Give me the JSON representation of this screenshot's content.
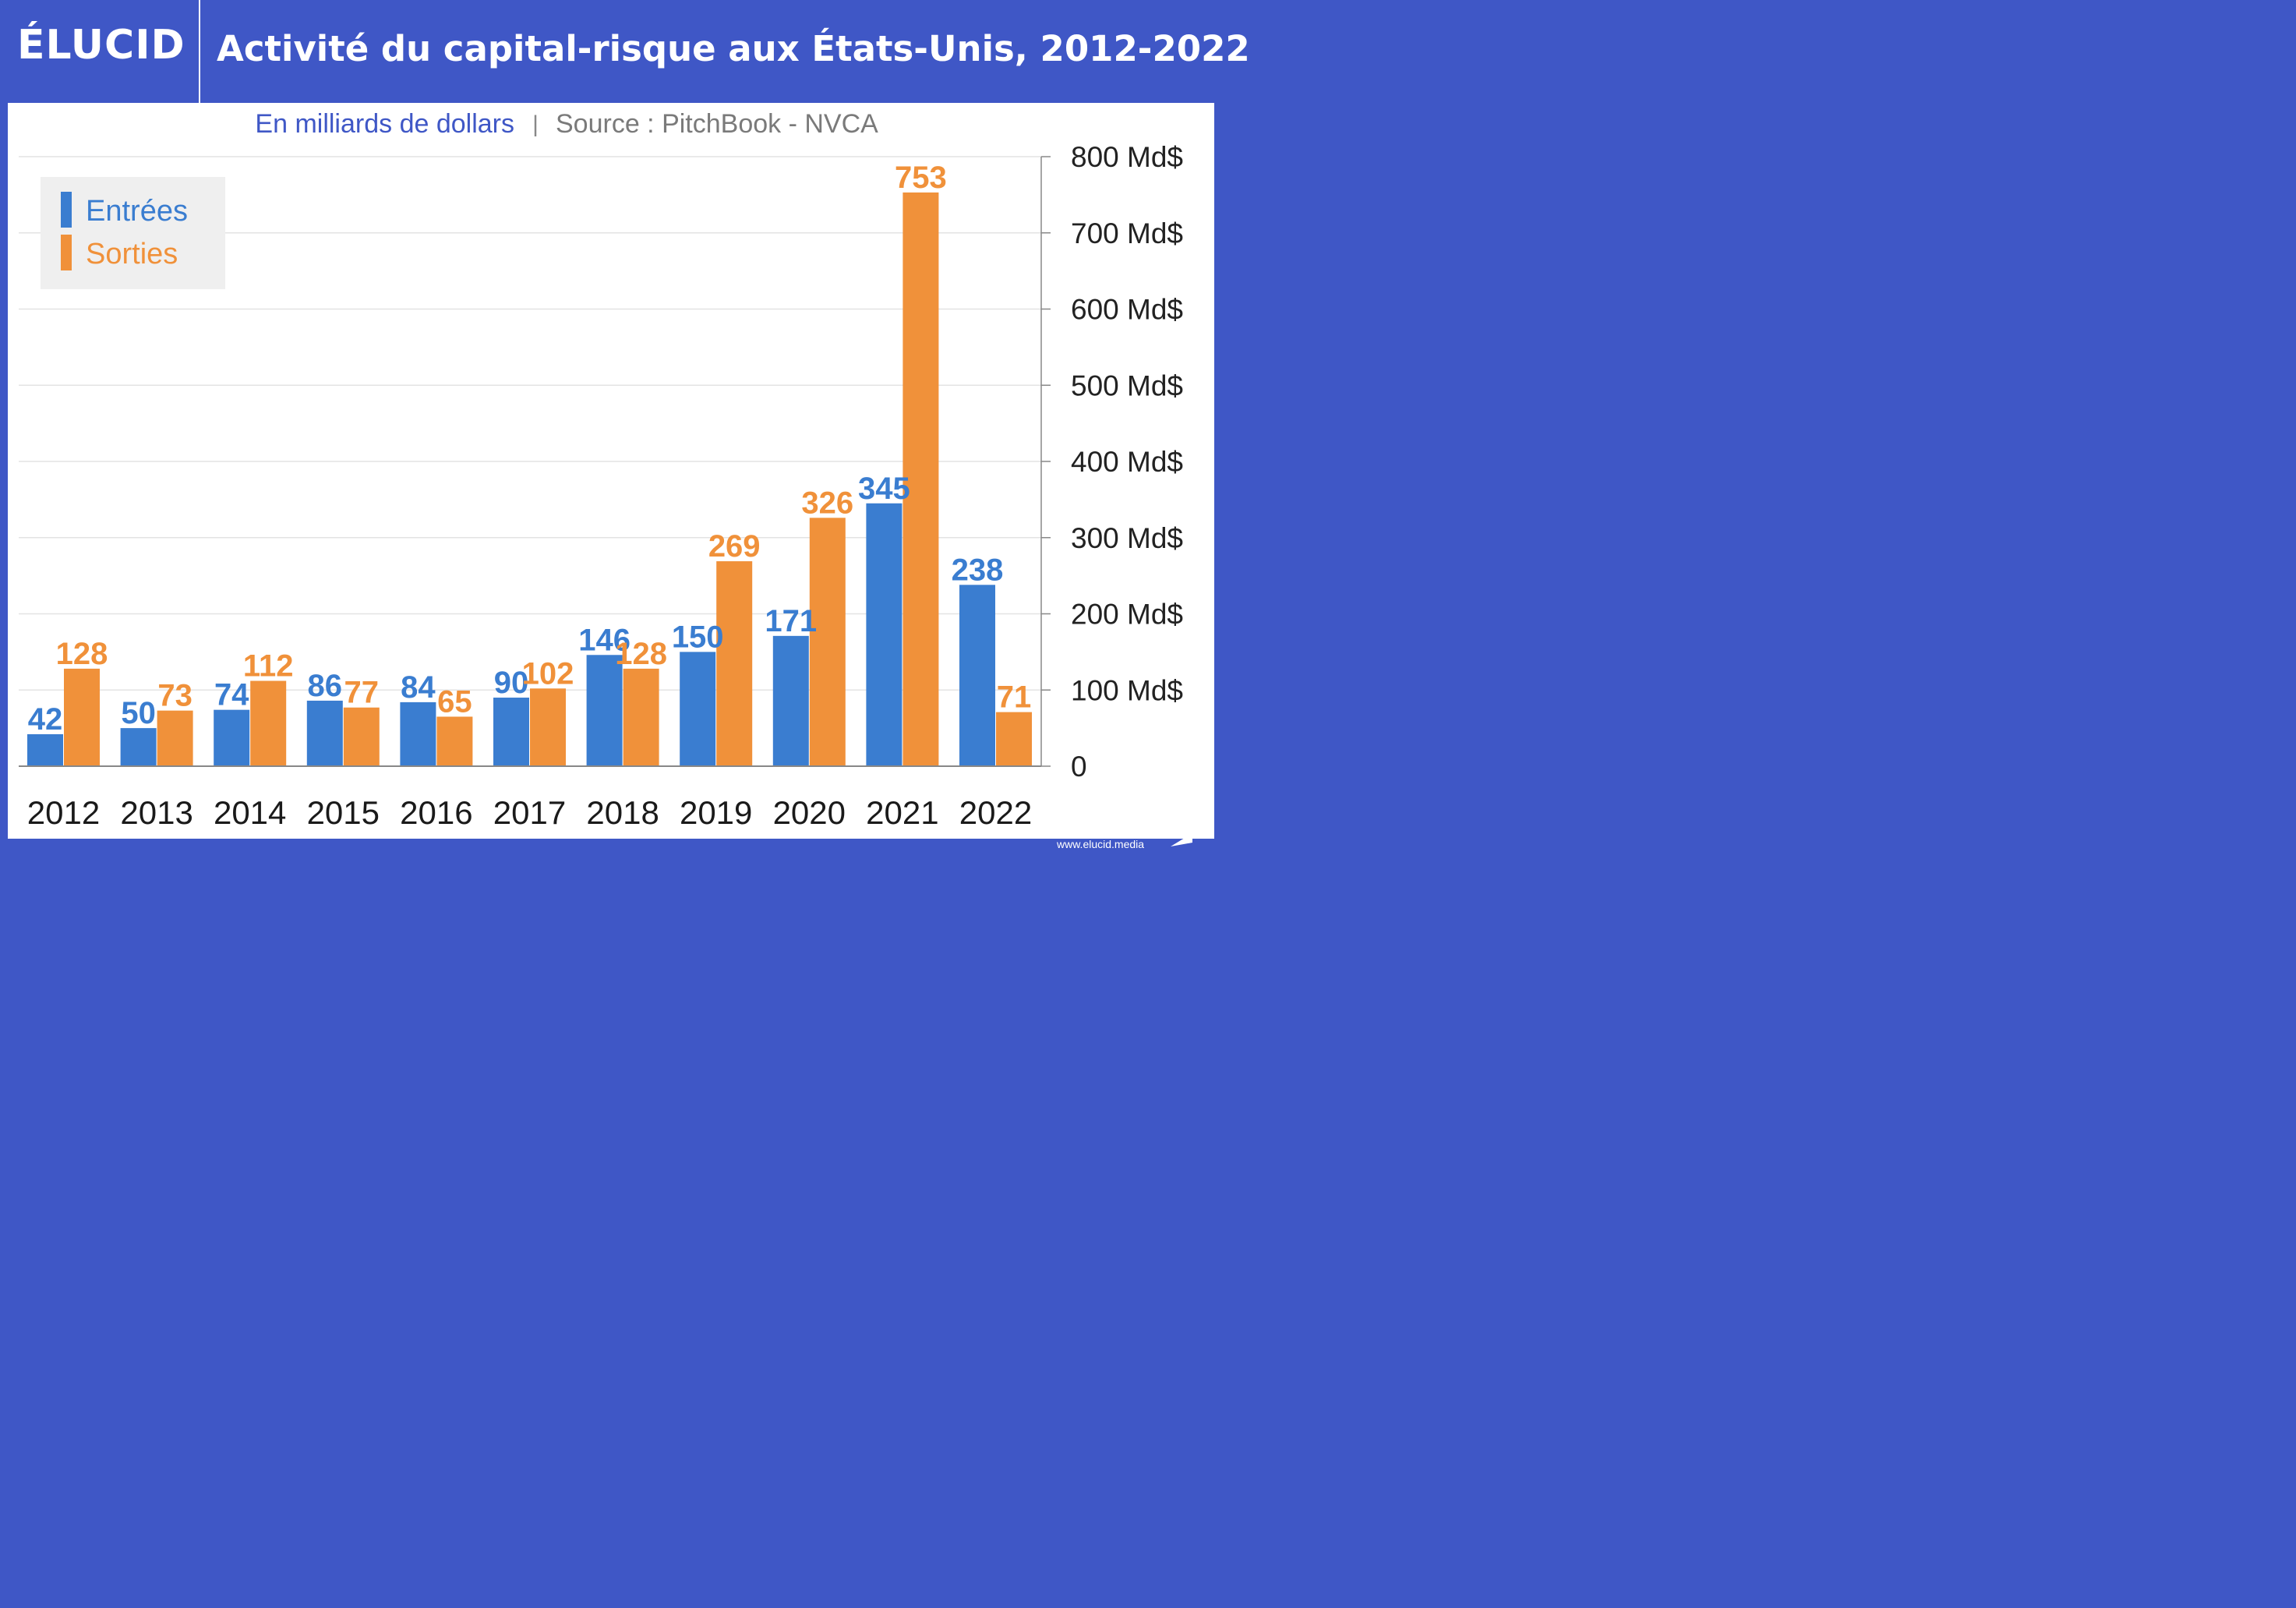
{
  "brand": {
    "logo_text": "ÉLUCID",
    "footer_url": "www.elucid.media"
  },
  "colors": {
    "background": "#3f57c6",
    "entrees": "#3a7dd0",
    "sorties": "#f0913a",
    "grid": "#e3e3e3",
    "axis": "#888888"
  },
  "chart_data": {
    "type": "bar",
    "title": "Activité du capital-risque aux États-Unis, 2012-2022",
    "subtitle_unit": "En milliards de dollars",
    "subtitle_source": "Source : PitchBook - NVCA",
    "separator": "|",
    "categories": [
      "2012",
      "2013",
      "2014",
      "2015",
      "2016",
      "2017",
      "2018",
      "2019",
      "2020",
      "2021",
      "2022"
    ],
    "series": [
      {
        "name": "Entrées",
        "color": "#3a7dd0",
        "values": [
          42,
          50,
          74,
          86,
          84,
          90,
          146,
          150,
          171,
          345,
          238
        ]
      },
      {
        "name": "Sorties",
        "color": "#f0913a",
        "values": [
          128,
          73,
          112,
          77,
          65,
          102,
          128,
          269,
          326,
          753,
          71
        ]
      }
    ],
    "ylim": [
      0,
      800
    ],
    "yticks": [
      0,
      100,
      200,
      300,
      400,
      500,
      600,
      700,
      800
    ],
    "ytick_labels": [
      "0",
      "100 Md$",
      "200 Md$",
      "300 Md$",
      "400 Md$",
      "500 Md$",
      "600 Md$",
      "700 Md$",
      "800 Md$"
    ],
    "y_axis_side": "right",
    "grid": true,
    "legend_position": "top-left"
  }
}
